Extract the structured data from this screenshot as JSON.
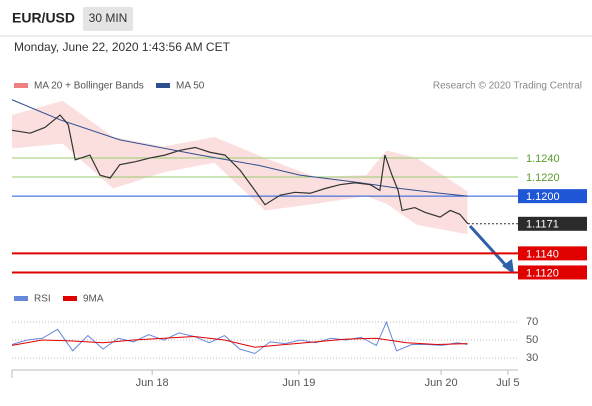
{
  "header": {
    "symbol": "EUR/USD",
    "timeframe": "30 MIN",
    "datetime": "Monday, June 22, 2020 1:43:56 AM CET"
  },
  "chart_data": [
    {
      "type": "line",
      "credit": "Research © 2020 Trading Central",
      "xlim": [
        0,
        100
      ],
      "ylim": [
        1.111,
        1.1306
      ],
      "xticks": [
        {
          "value": 27.7,
          "label": "Jun 18"
        },
        {
          "value": 56.7,
          "label": "Jun 19"
        },
        {
          "value": 84.8,
          "label": "Jun 20"
        },
        {
          "value": 98,
          "label": "Jul 5"
        }
      ],
      "band": {
        "name": "MA 20 + Bollinger Bands",
        "color": "#f08080",
        "x": [
          0,
          10,
          20,
          30,
          40,
          50,
          60,
          70,
          74,
          80,
          90
        ],
        "upper": [
          1.1285,
          1.13,
          1.1262,
          1.1252,
          1.1262,
          1.124,
          1.122,
          1.1222,
          1.1248,
          1.124,
          1.1205
        ],
        "lower": [
          1.125,
          1.1255,
          1.1208,
          1.1225,
          1.1235,
          1.1185,
          1.1192,
          1.12,
          1.1192,
          1.117,
          1.116
        ]
      },
      "series": [
        {
          "name": "MA 50",
          "color": "#2f4f8f",
          "x": [
            0,
            9.5,
            21.3,
            37.2,
            49.0,
            56.9,
            68.8,
            76.7,
            84.6,
            90.1
          ],
          "values": [
            1.1301,
            1.128,
            1.1259,
            1.1243,
            1.1232,
            1.1222,
            1.1214,
            1.1208,
            1.1203,
            1.12
          ]
        },
        {
          "color": "#333333",
          "x": [
            0,
            3.6,
            6.5,
            9.5,
            11.1,
            12.5,
            15.4,
            17.4,
            19.4,
            21.3,
            24.3,
            27.3,
            30.2,
            33.2,
            36.2,
            39.1,
            42.1,
            45.1,
            48.0,
            50.0,
            53.0,
            55.9,
            58.9,
            61.9,
            64.8,
            67.8,
            70.8,
            72.7,
            73.7,
            75.1,
            76.3,
            77.1,
            79.6,
            81.6,
            84.6,
            86.6,
            88.5,
            90.1
          ],
          "values": [
            1.1269,
            1.1266,
            1.1272,
            1.1285,
            1.1275,
            1.1238,
            1.1243,
            1.1222,
            1.1219,
            1.1233,
            1.1236,
            1.124,
            1.1243,
            1.1248,
            1.1251,
            1.1246,
            1.1243,
            1.1227,
            1.1206,
            1.1191,
            1.1201,
            1.1204,
            1.1203,
            1.1208,
            1.1212,
            1.1214,
            1.1212,
            1.1206,
            1.1243,
            1.1222,
            1.1206,
            1.1185,
            1.1188,
            1.1183,
            1.1178,
            1.1185,
            1.1181,
            1.1171
          ]
        }
      ],
      "levels": [
        {
          "value": 1.124,
          "label": "1.1240",
          "color": "#9acd70",
          "box": false
        },
        {
          "value": 1.122,
          "label": "1.1220",
          "color": "#9acd70",
          "box": false
        },
        {
          "value": 1.12,
          "label": "1.1200",
          "color": "#1e56d6",
          "box": true
        },
        {
          "value": 1.1171,
          "label": "1.1171",
          "color": "#2b2b2b",
          "box": true
        },
        {
          "value": 1.114,
          "label": "1.1140",
          "color": "#e00000",
          "box": true
        },
        {
          "value": 1.112,
          "label": "1.1120",
          "color": "#e00000",
          "box": true
        }
      ]
    },
    {
      "type": "line",
      "xlim": [
        0,
        100
      ],
      "ylim": [
        21,
        78
      ],
      "yticks": [
        30,
        50,
        70
      ],
      "series": [
        {
          "name": "RSI",
          "color": "#6688dd",
          "x": [
            0,
            3,
            6,
            9,
            12,
            15,
            18,
            21,
            24,
            27,
            30,
            33,
            36,
            39,
            42,
            45,
            48,
            51,
            54,
            57,
            60,
            63,
            66,
            69,
            72,
            74,
            76,
            79,
            82,
            85,
            88,
            90
          ],
          "values": [
            45,
            50,
            52,
            62,
            38,
            55,
            40,
            52,
            48,
            56,
            50,
            58,
            54,
            47,
            55,
            40,
            35,
            48,
            46,
            50,
            47,
            52,
            50,
            53,
            44,
            70,
            38,
            45,
            45,
            44,
            47,
            45
          ]
        },
        {
          "name": "9MA",
          "color": "#e00000",
          "x": [
            0,
            6,
            12,
            18,
            24,
            30,
            36,
            42,
            48,
            54,
            60,
            66,
            72,
            78,
            84,
            90
          ],
          "values": [
            44,
            50,
            49,
            47,
            50,
            52,
            54,
            50,
            42,
            45,
            48,
            51,
            52,
            47,
            45,
            46
          ]
        }
      ]
    }
  ]
}
